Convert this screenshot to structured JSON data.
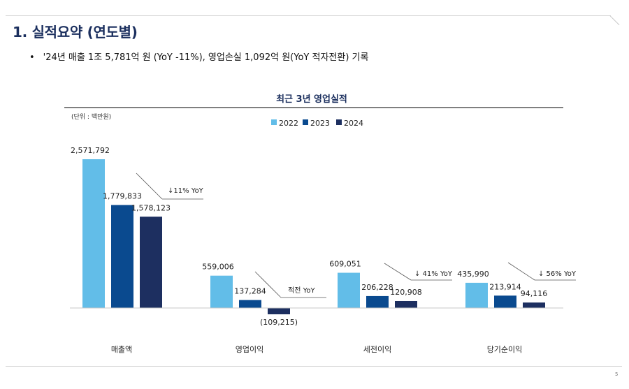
{
  "page": {
    "title": "1. 실적요약 (연도별)",
    "bullet": "'24년 매출 1조 5,781억 원 (YoY -11%), 영업손실 1,092억 원(YoY 적자전환) 기록",
    "bullet_marker": "•",
    "page_number": "5"
  },
  "colors": {
    "title": "#1b2f5e",
    "series_2022": "#62bde8",
    "series_2023": "#0a4a8f",
    "series_2024": "#1d2f60"
  },
  "chart_data": {
    "type": "bar",
    "title": "최근 3년 영업실적",
    "unit_label": "(단위 : 백만원)",
    "legend_position": "top",
    "categories": [
      "매출액",
      "영업이익",
      "세전이익",
      "당기순이익"
    ],
    "series": [
      {
        "name": "2022",
        "values": [
          2571792,
          559006,
          609051,
          435990
        ],
        "labels": [
          "2,571,792",
          "559,006",
          "609,051",
          "435,990"
        ]
      },
      {
        "name": "2023",
        "values": [
          1779833,
          137284,
          206228,
          213914
        ],
        "labels": [
          "1,779,833",
          "137,284",
          "206,228",
          "213,914"
        ]
      },
      {
        "name": "2024",
        "values": [
          1578123,
          -109215,
          120908,
          94116
        ],
        "labels": [
          "1,578,123",
          "(109,215)",
          "120,908",
          "94,116"
        ]
      }
    ],
    "annotations": [
      "↓11% YoY",
      "적전  YoY",
      "↓ 41% YoY",
      "↓ 56% YoY"
    ],
    "grid": false
  }
}
